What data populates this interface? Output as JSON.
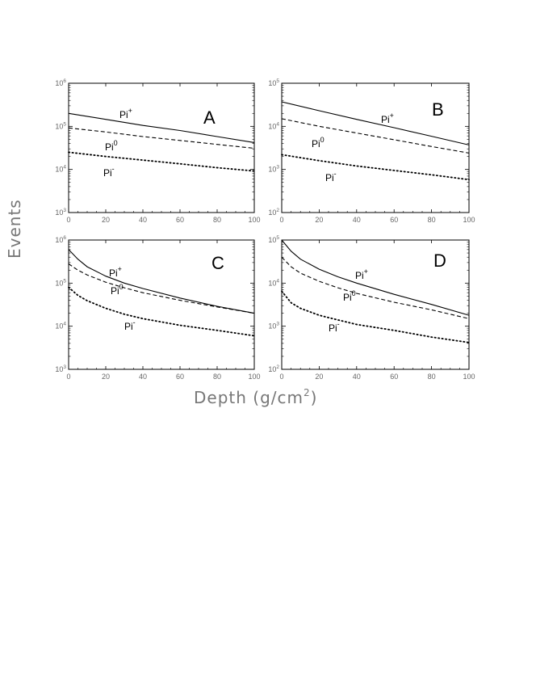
{
  "figure": {
    "ylabel": "Events",
    "xlabel_base": "Depth (g/cm",
    "xlabel_sup": "2",
    "xlabel_end": ")"
  },
  "chart_data": [
    {
      "panel": "A",
      "type": "line",
      "yscale": "log",
      "xlim": [
        0,
        100
      ],
      "ylim_exp": [
        3,
        6
      ],
      "x_ticks": [
        0,
        20,
        40,
        60,
        80,
        100
      ],
      "series": [
        {
          "name": "Pi",
          "charge": "+",
          "style": "solid",
          "x": [
            0,
            20,
            40,
            60,
            80,
            100
          ],
          "y": [
            200000,
            145000,
            105000,
            80000,
            58000,
            42000
          ]
        },
        {
          "name": "Pi",
          "charge": "0",
          "style": "dashed",
          "x": [
            0,
            20,
            40,
            60,
            80,
            100
          ],
          "y": [
            92000,
            74000,
            58000,
            47000,
            38000,
            31000
          ]
        },
        {
          "name": "Pi",
          "charge": "-",
          "style": "dotted",
          "x": [
            0,
            20,
            40,
            60,
            80,
            100
          ],
          "y": [
            25000,
            20000,
            16500,
            13500,
            11000,
            9200
          ]
        }
      ]
    },
    {
      "panel": "B",
      "type": "line",
      "yscale": "log",
      "xlim": [
        0,
        100
      ],
      "ylim_exp": [
        2,
        5
      ],
      "x_ticks": [
        0,
        20,
        40,
        60,
        80,
        100
      ],
      "series": [
        {
          "name": "Pi",
          "charge": "+",
          "style": "solid",
          "x": [
            0,
            20,
            40,
            60,
            80,
            100
          ],
          "y": [
            37000,
            23000,
            14500,
            9300,
            5900,
            3700
          ]
        },
        {
          "name": "Pi",
          "charge": "0",
          "style": "dashed",
          "x": [
            0,
            20,
            40,
            60,
            80,
            100
          ],
          "y": [
            15000,
            10000,
            7000,
            4900,
            3400,
            2400
          ]
        },
        {
          "name": "Pi",
          "charge": "-",
          "style": "dotted",
          "x": [
            0,
            20,
            40,
            60,
            80,
            100
          ],
          "y": [
            2200,
            1600,
            1200,
            950,
            750,
            580
          ]
        }
      ]
    },
    {
      "panel": "C",
      "type": "line",
      "yscale": "log",
      "xlim": [
        0,
        100
      ],
      "ylim_exp": [
        3,
        6
      ],
      "x_ticks": [
        0,
        20,
        40,
        60,
        80,
        100
      ],
      "series": [
        {
          "name": "Pi",
          "charge": "+",
          "style": "solid",
          "x": [
            0,
            5,
            10,
            20,
            30,
            40,
            60,
            80,
            100
          ],
          "y": [
            600000,
            360000,
            240000,
            145000,
            100000,
            75000,
            45000,
            29000,
            20000
          ]
        },
        {
          "name": "Pi",
          "charge": "0",
          "style": "dashed",
          "x": [
            0,
            5,
            10,
            20,
            30,
            40,
            60,
            80,
            100
          ],
          "y": [
            280000,
            200000,
            155000,
            105000,
            78000,
            60000,
            40000,
            28000,
            20000
          ]
        },
        {
          "name": "Pi",
          "charge": "-",
          "style": "dotted",
          "x": [
            0,
            5,
            10,
            20,
            30,
            40,
            60,
            80,
            100
          ],
          "y": [
            80000,
            52000,
            39000,
            26000,
            19000,
            15000,
            10500,
            8000,
            6000
          ]
        }
      ]
    },
    {
      "panel": "D",
      "type": "line",
      "yscale": "log",
      "xlim": [
        0,
        100
      ],
      "ylim_exp": [
        2,
        5
      ],
      "x_ticks": [
        0,
        20,
        40,
        60,
        80,
        100
      ],
      "series": [
        {
          "name": "Pi",
          "charge": "+",
          "style": "solid",
          "x": [
            0,
            5,
            10,
            20,
            30,
            40,
            60,
            80,
            100
          ],
          "y": [
            100000,
            55000,
            36000,
            21000,
            14000,
            10000,
            5500,
            3200,
            1800
          ]
        },
        {
          "name": "Pi",
          "charge": "0",
          "style": "dashed",
          "x": [
            0,
            5,
            10,
            20,
            30,
            40,
            60,
            80,
            100
          ],
          "y": [
            40000,
            24000,
            17000,
            11000,
            7800,
            5800,
            3600,
            2400,
            1500
          ]
        },
        {
          "name": "Pi",
          "charge": "-",
          "style": "dotted",
          "x": [
            0,
            5,
            10,
            20,
            30,
            40,
            60,
            80,
            100
          ],
          "y": [
            6500,
            3500,
            2600,
            1800,
            1400,
            1100,
            800,
            560,
            420
          ]
        }
      ]
    }
  ]
}
